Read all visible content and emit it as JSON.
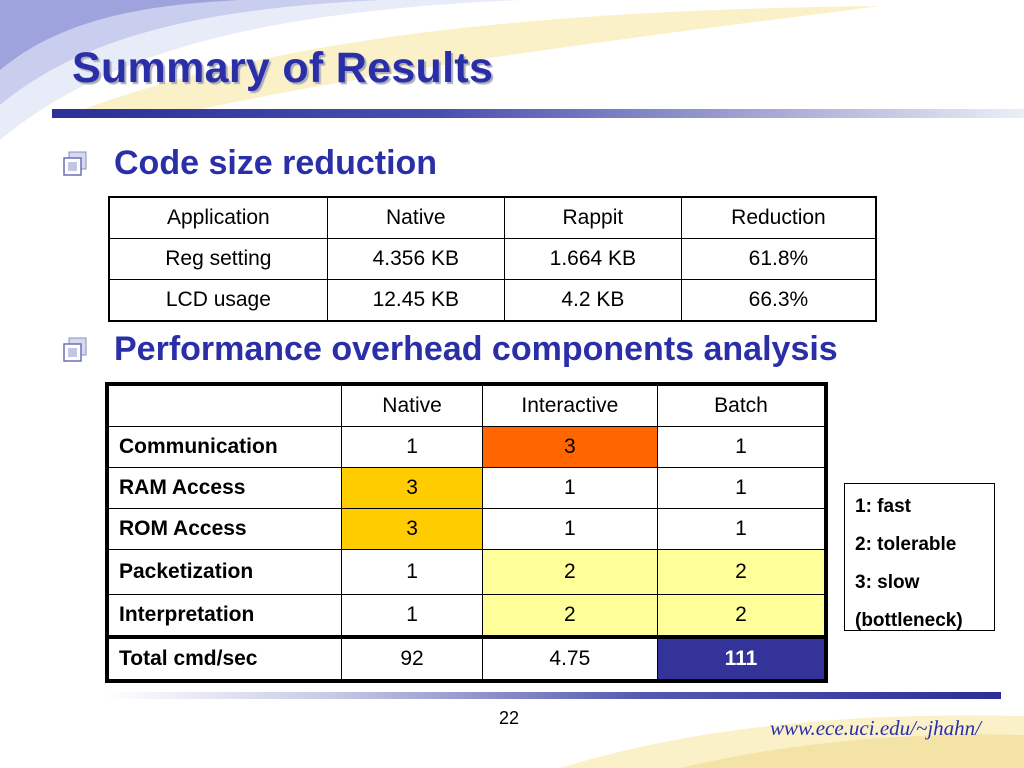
{
  "slide": {
    "title": "Summary of Results",
    "page_number": "22",
    "footer_url": "www.ece.uci.edu/~jhahn/"
  },
  "bullets": [
    {
      "text": "Code size reduction"
    },
    {
      "text": "Performance overhead components analysis"
    }
  ],
  "code_size_table": {
    "headers": [
      "Application",
      "Native",
      "Rappit",
      "Reduction"
    ],
    "rows": [
      [
        "Reg setting",
        "4.356 KB",
        "1.664 KB",
        "61.8%"
      ],
      [
        "LCD usage",
        "12.45 KB",
        "4.2 KB",
        "66.3%"
      ]
    ]
  },
  "performance_table": {
    "headers": [
      "",
      "Native",
      "Interactive",
      "Batch"
    ],
    "rows": [
      [
        "Communication",
        "1",
        "3",
        "1"
      ],
      [
        "RAM Access",
        "3",
        "1",
        "1"
      ],
      [
        "ROM Access",
        "3",
        "1",
        "1"
      ],
      [
        "Packetization",
        "1",
        "2",
        "2"
      ],
      [
        "Interpretation",
        "1",
        "2",
        "2"
      ],
      [
        "Total cmd/sec",
        "92",
        "4.75",
        "111"
      ]
    ]
  },
  "legend": {
    "lines": [
      "1: fast",
      "2: tolerable",
      "3: slow",
      "(bottleneck)"
    ]
  },
  "colors": {
    "title": "#2a2fa8",
    "highlight_orange": "#ff6600",
    "highlight_gold": "#ffcc00",
    "highlight_pale_yellow": "#ffff99",
    "highlight_blue": "#333399"
  }
}
